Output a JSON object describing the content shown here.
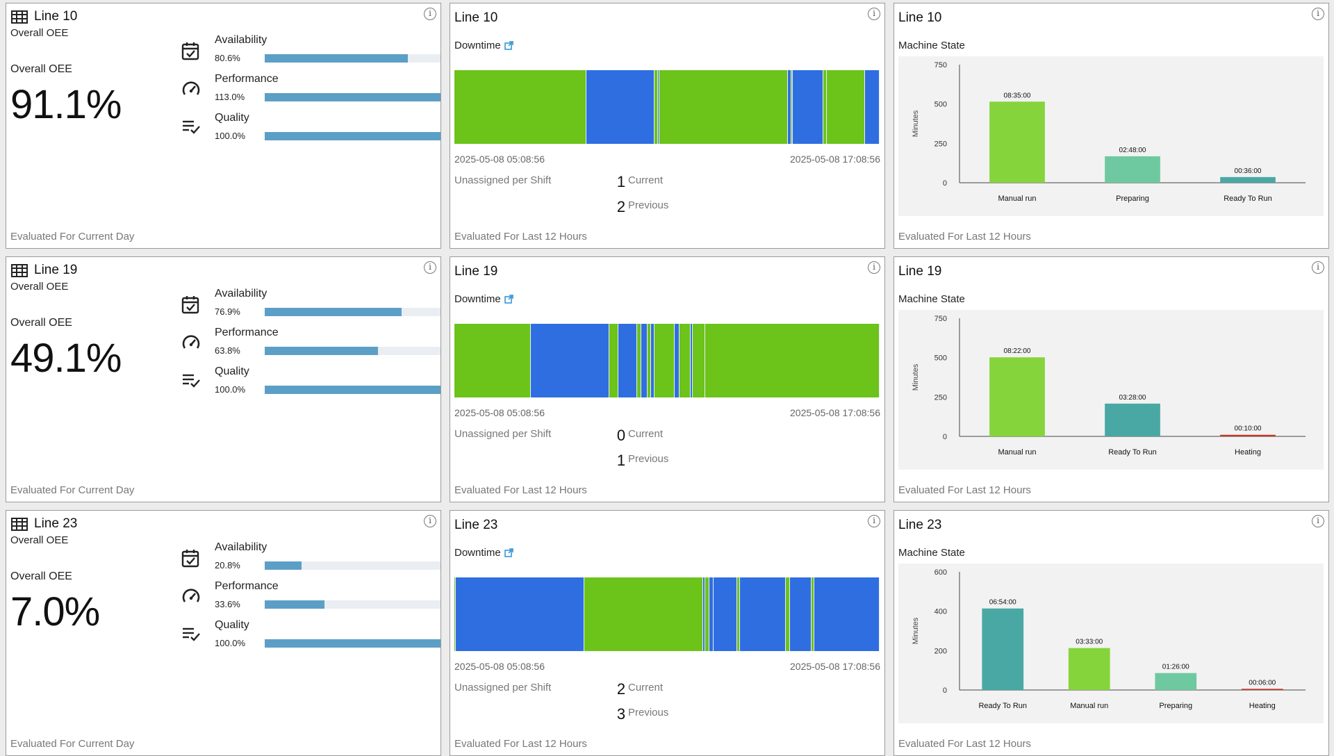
{
  "colors": {
    "green": "#6cc31a",
    "blue": "#2f6ee0",
    "bar_metric": "#5c9fc6",
    "link": "#2a8ed6"
  },
  "rows": [
    {
      "oee": {
        "line": "Line 10",
        "subtitle": "Overall OEE",
        "label": "Overall OEE",
        "value": "91.1%",
        "metrics": [
          {
            "name": "Availability",
            "percent": "80.6%",
            "fill": 0.806,
            "icon": "calendar-check-icon"
          },
          {
            "name": "Performance",
            "percent": "113.0%",
            "fill": 1.0,
            "icon": "speedometer-icon"
          },
          {
            "name": "Quality",
            "percent": "100.0%",
            "fill": 1.0,
            "icon": "checklist-icon"
          }
        ],
        "footer": "Evaluated For Current Day"
      },
      "downtime": {
        "line": "Line 10",
        "label": "Downtime",
        "start": "2025-05-08 05:08:56",
        "end": "2025-05-08 17:08:56",
        "unassigned_label": "Unassigned per Shift",
        "current": "1",
        "current_label": "Current",
        "previous": "2",
        "previous_label": "Previous",
        "footer": "Evaluated For Last 12 Hours",
        "segments": [
          {
            "from": 0,
            "to": 0.31,
            "c": "g"
          },
          {
            "from": 0.31,
            "to": 0.47,
            "c": "b"
          },
          {
            "from": 0.47,
            "to": 0.478,
            "c": "g"
          },
          {
            "from": 0.478,
            "to": 0.482,
            "c": "b"
          },
          {
            "from": 0.482,
            "to": 0.785,
            "c": "g"
          },
          {
            "from": 0.785,
            "to": 0.792,
            "c": "b"
          },
          {
            "from": 0.792,
            "to": 0.796,
            "c": "g"
          },
          {
            "from": 0.796,
            "to": 0.868,
            "c": "b"
          },
          {
            "from": 0.868,
            "to": 0.876,
            "c": "g"
          },
          {
            "from": 0.876,
            "to": 0.965,
            "c": "g"
          },
          {
            "from": 0.965,
            "to": 1.0,
            "c": "b"
          }
        ]
      },
      "machine": {
        "line": "Line 10",
        "label": "Machine State",
        "ylabel": "Minutes",
        "ymax": 750,
        "yticks": [
          0,
          250,
          500,
          750
        ],
        "footer": "Evaluated For Last 12 Hours",
        "bars": [
          {
            "cat": "Manual run",
            "minutes": 515,
            "label": "08:35:00",
            "color": "#86d43c"
          },
          {
            "cat": "Preparing",
            "minutes": 168,
            "label": "02:48:00",
            "color": "#6fc9a0"
          },
          {
            "cat": "Ready To Run",
            "minutes": 36,
            "label": "00:36:00",
            "color": "#4aa8a4"
          }
        ]
      }
    },
    {
      "oee": {
        "line": "Line 19",
        "subtitle": "Overall OEE",
        "label": "Overall OEE",
        "value": "49.1%",
        "metrics": [
          {
            "name": "Availability",
            "percent": "76.9%",
            "fill": 0.769,
            "icon": "calendar-check-icon"
          },
          {
            "name": "Performance",
            "percent": "63.8%",
            "fill": 0.638,
            "icon": "speedometer-icon"
          },
          {
            "name": "Quality",
            "percent": "100.0%",
            "fill": 1.0,
            "icon": "checklist-icon"
          }
        ],
        "footer": "Evaluated For Current Day"
      },
      "downtime": {
        "line": "Line 19",
        "label": "Downtime",
        "start": "2025-05-08 05:08:56",
        "end": "2025-05-08 17:08:56",
        "unassigned_label": "Unassigned per Shift",
        "current": "0",
        "current_label": "Current",
        "previous": "1",
        "previous_label": "Previous",
        "footer": "Evaluated For Last 12 Hours",
        "segments": [
          {
            "from": 0,
            "to": 0.18,
            "c": "g"
          },
          {
            "from": 0.18,
            "to": 0.365,
            "c": "b"
          },
          {
            "from": 0.365,
            "to": 0.385,
            "c": "g"
          },
          {
            "from": 0.385,
            "to": 0.43,
            "c": "b"
          },
          {
            "from": 0.43,
            "to": 0.44,
            "c": "g"
          },
          {
            "from": 0.44,
            "to": 0.455,
            "c": "b"
          },
          {
            "from": 0.455,
            "to": 0.463,
            "c": "g"
          },
          {
            "from": 0.463,
            "to": 0.47,
            "c": "b"
          },
          {
            "from": 0.47,
            "to": 0.518,
            "c": "g"
          },
          {
            "from": 0.518,
            "to": 0.53,
            "c": "b"
          },
          {
            "from": 0.53,
            "to": 0.555,
            "c": "g"
          },
          {
            "from": 0.555,
            "to": 0.56,
            "c": "b"
          },
          {
            "from": 0.56,
            "to": 0.59,
            "c": "g"
          },
          {
            "from": 0.59,
            "to": 1.0,
            "c": "g"
          }
        ]
      },
      "machine": {
        "line": "Line 19",
        "label": "Machine State",
        "ylabel": "Minutes",
        "ymax": 750,
        "yticks": [
          0,
          250,
          500,
          750
        ],
        "footer": "Evaluated For Last 12 Hours",
        "bars": [
          {
            "cat": "Manual run",
            "minutes": 502,
            "label": "08:22:00",
            "color": "#86d43c"
          },
          {
            "cat": "Ready To Run",
            "minutes": 208,
            "label": "03:28:00",
            "color": "#4aa8a4"
          },
          {
            "cat": "Heating",
            "minutes": 10,
            "label": "00:10:00",
            "color": "#c0392b"
          }
        ]
      }
    },
    {
      "oee": {
        "line": "Line 23",
        "subtitle": "Overall OEE",
        "label": "Overall OEE",
        "value": "7.0%",
        "metrics": [
          {
            "name": "Availability",
            "percent": "20.8%",
            "fill": 0.208,
            "icon": "calendar-check-icon"
          },
          {
            "name": "Performance",
            "percent": "33.6%",
            "fill": 0.336,
            "icon": "speedometer-icon"
          },
          {
            "name": "Quality",
            "percent": "100.0%",
            "fill": 1.0,
            "icon": "checklist-icon"
          }
        ],
        "footer": "Evaluated For Current Day"
      },
      "downtime": {
        "line": "Line 23",
        "label": "Downtime",
        "start": "2025-05-08 05:08:56",
        "end": "2025-05-08 17:08:56",
        "unassigned_label": "Unassigned per Shift",
        "current": "2",
        "current_label": "Current",
        "previous": "3",
        "previous_label": "Previous",
        "footer": "Evaluated For Last 12 Hours",
        "segments": [
          {
            "from": 0,
            "to": 0.003,
            "c": "g"
          },
          {
            "from": 0.003,
            "to": 0.305,
            "c": "b"
          },
          {
            "from": 0.305,
            "to": 0.585,
            "c": "g"
          },
          {
            "from": 0.585,
            "to": 0.59,
            "c": "b"
          },
          {
            "from": 0.59,
            "to": 0.6,
            "c": "g"
          },
          {
            "from": 0.6,
            "to": 0.61,
            "c": "b"
          },
          {
            "from": 0.61,
            "to": 0.665,
            "c": "b"
          },
          {
            "from": 0.665,
            "to": 0.672,
            "c": "g"
          },
          {
            "from": 0.672,
            "to": 0.78,
            "c": "b"
          },
          {
            "from": 0.78,
            "to": 0.79,
            "c": "g"
          },
          {
            "from": 0.79,
            "to": 0.84,
            "c": "b"
          },
          {
            "from": 0.84,
            "to": 0.846,
            "c": "g"
          },
          {
            "from": 0.846,
            "to": 1.0,
            "c": "b"
          }
        ]
      },
      "machine": {
        "line": "Line 23",
        "label": "Machine State",
        "ylabel": "Minutes",
        "ymax": 600,
        "yticks": [
          0,
          200,
          400,
          600
        ],
        "footer": "Evaluated For Last 12 Hours",
        "bars": [
          {
            "cat": "Ready To Run",
            "minutes": 414,
            "label": "06:54:00",
            "color": "#4aa8a4"
          },
          {
            "cat": "Manual run",
            "minutes": 213,
            "label": "03:33:00",
            "color": "#86d43c"
          },
          {
            "cat": "Preparing",
            "minutes": 86,
            "label": "01:26:00",
            "color": "#6fc9a0"
          },
          {
            "cat": "Heating",
            "minutes": 6,
            "label": "00:06:00",
            "color": "#c0392b"
          }
        ]
      }
    }
  ]
}
